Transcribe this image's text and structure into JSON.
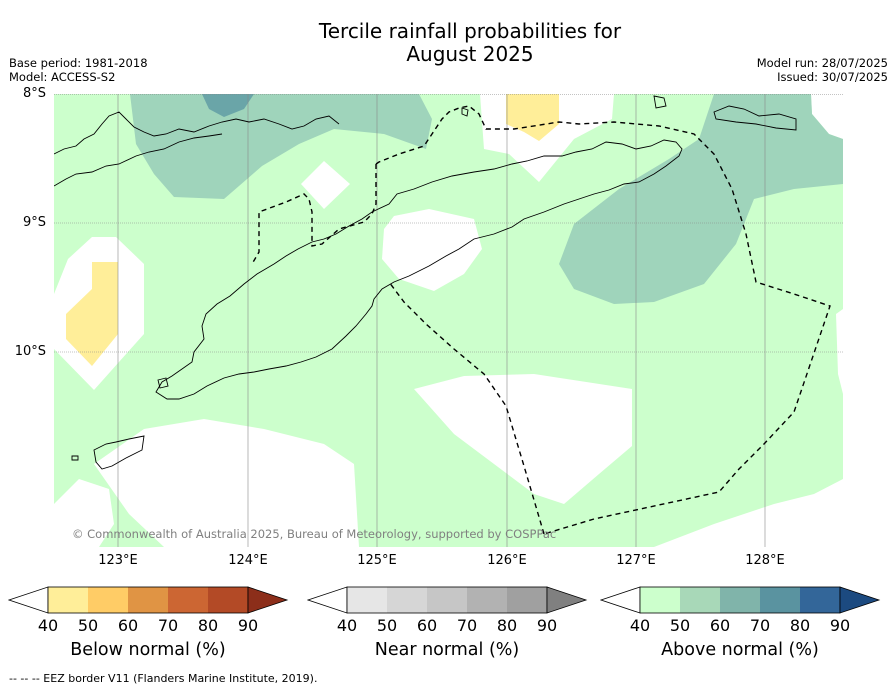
{
  "title": {
    "line1": "Tercile rainfall probabilities for",
    "line2": "August 2025"
  },
  "meta": {
    "base_period": "Base period: 1981-2018",
    "model": "Model: ACCESS-S2",
    "model_run": "Model run: 28/07/2025",
    "issued": "Issued: 30/07/2025"
  },
  "map": {
    "lon_range": [
      122.5,
      128.6
    ],
    "lat_range": [
      -11.5,
      -8.0
    ],
    "lat_labels": [
      "8°S",
      "9°S",
      "10°S"
    ],
    "lon_labels": [
      "123°E",
      "124°E",
      "125°E",
      "126°E",
      "127°E",
      "128°E"
    ],
    "grid": true,
    "copyright": "© Commonwealth of Australia 2025, Bureau of Meteorology, supported by COSPPac"
  },
  "colors": {
    "above_40_50": "#ccffcc",
    "above_50_60": "#9fd4bb",
    "above_60_70": "#6aa5a8",
    "below_40_50": "#ffee99",
    "coastline": "#000000",
    "eez_border": "#000000"
  },
  "colorbars": [
    {
      "title": "Below normal (%)",
      "ticks": [
        "40",
        "50",
        "60",
        "70",
        "80",
        "90"
      ],
      "colors": [
        "#ffffff",
        "#ffee99",
        "#ffcc66",
        "#e09444",
        "#cc6633",
        "#b34a26",
        "#8c2e1a"
      ]
    },
    {
      "title": "Near normal (%)",
      "ticks": [
        "40",
        "50",
        "60",
        "70",
        "80",
        "90"
      ],
      "colors": [
        "#ffffff",
        "#e6e6e6",
        "#d6d6d6",
        "#c6c6c6",
        "#b2b2b2",
        "#a0a0a0",
        "#808080"
      ]
    },
    {
      "title": "Above normal (%)",
      "ticks": [
        "40",
        "50",
        "60",
        "70",
        "80",
        "90"
      ],
      "colors": [
        "#ffffff",
        "#ccffcc",
        "#a8d8b8",
        "#80b4aa",
        "#5a93a0",
        "#336699",
        "#1c4a80"
      ]
    }
  ],
  "eez_note": "--  --  -- EEZ border V11 (Flanders Marine Institute, 2019)."
}
